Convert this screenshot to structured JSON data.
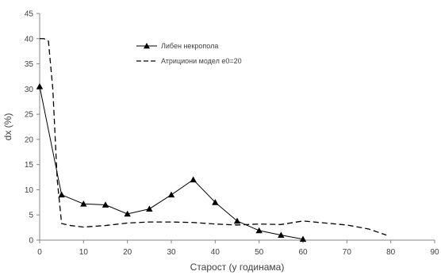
{
  "chart_data": {
    "type": "line",
    "title": "",
    "xlabel": "Старост (у годинама)",
    "ylabel": "dx (%)",
    "xlim": [
      0,
      90
    ],
    "ylim": [
      0,
      45
    ],
    "x_ticks": [
      0,
      10,
      20,
      30,
      40,
      50,
      60,
      70,
      80,
      90
    ],
    "y_ticks": [
      0,
      5,
      10,
      15,
      20,
      25,
      30,
      35,
      40,
      45
    ],
    "grid": false,
    "legend_position": "top-center",
    "series": [
      {
        "name": "Либен некропола",
        "style": "solid-line-triangle-markers",
        "color": "#000000",
        "x": [
          0,
          5,
          10,
          15,
          20,
          25,
          30,
          35,
          40,
          45,
          50,
          55,
          60
        ],
        "y": [
          30.5,
          9,
          7.2,
          7,
          5.2,
          6.2,
          9,
          12,
          7.5,
          3.8,
          1.9,
          1,
          0.2
        ]
      },
      {
        "name": "Атрициони модел e0=20",
        "style": "dashed-line",
        "color": "#000000",
        "x": [
          0,
          1,
          2,
          3,
          4,
          5,
          7,
          10,
          15,
          20,
          25,
          30,
          35,
          40,
          45,
          50,
          55,
          60,
          65,
          70,
          75,
          79
        ],
        "y": [
          40,
          40,
          39.5,
          30,
          12,
          3.3,
          2.9,
          2.6,
          2.9,
          3.4,
          3.6,
          3.6,
          3.5,
          3.2,
          3.0,
          3.2,
          3.1,
          3.8,
          3.4,
          3.0,
          2.2,
          1.0
        ]
      }
    ]
  }
}
